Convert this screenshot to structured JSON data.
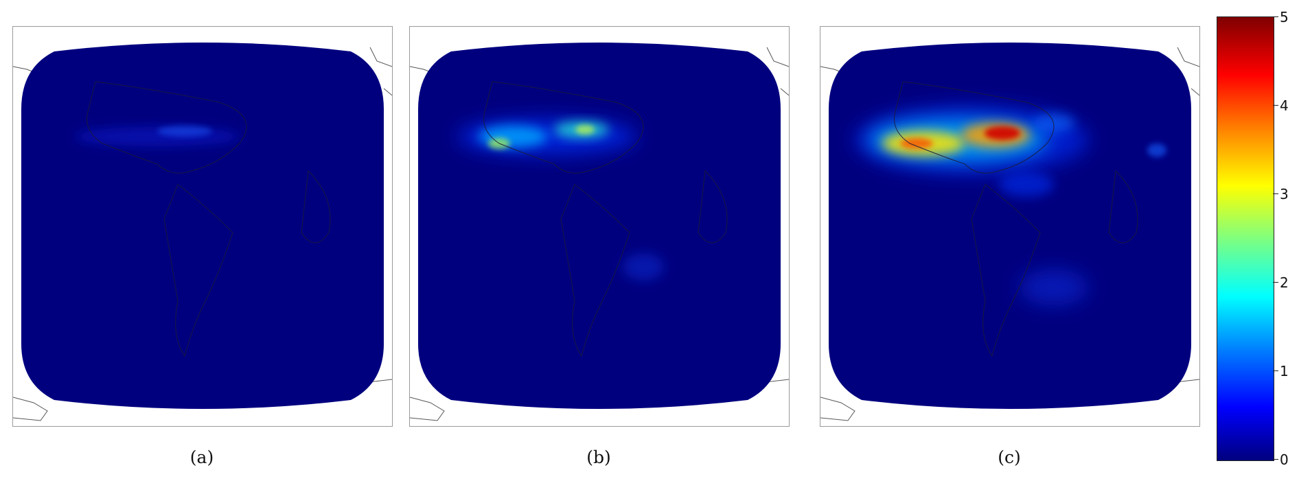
{
  "panels": [
    {
      "id": "a",
      "caption": "(a)",
      "intensity": "low"
    },
    {
      "id": "b",
      "caption": "(b)",
      "intensity": "medium"
    },
    {
      "id": "c",
      "caption": "(c)",
      "intensity": "high"
    }
  ],
  "colorbar": {
    "min": 0,
    "max": 5,
    "ticks": [
      "0",
      "1",
      "2",
      "3",
      "4",
      "5"
    ],
    "colormap": "jet",
    "colors": [
      "#00007f",
      "#0000ff",
      "#007fff",
      "#00ffff",
      "#7fff7f",
      "#ffff00",
      "#ff7f00",
      "#ff0000",
      "#7f0000"
    ]
  },
  "background_color": "#00007f"
}
